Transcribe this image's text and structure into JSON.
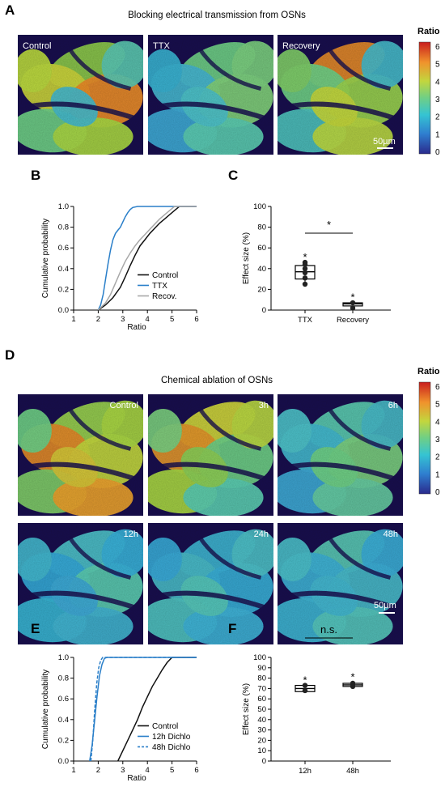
{
  "colors": {
    "control": "#111111",
    "ttx": "#2a7fc9",
    "recovery": "#a8a8a8",
    "dichlo": "#2a7fc9",
    "micrograph_bg": "#1c1450"
  },
  "panel_A": {
    "letter": "A",
    "title": "Blocking electrical transmission from OSNs",
    "image_labels": [
      "Control",
      "TTX",
      "Recovery"
    ],
    "scale_bar": "50µm",
    "colorbar": {
      "title": "Ratio",
      "ticks": [
        "6",
        "5",
        "4",
        "3",
        "2",
        "1",
        "0"
      ]
    }
  },
  "panel_D": {
    "letter": "D",
    "title": "Chemical ablation of OSNs",
    "image_labels": [
      "Control",
      "3h",
      "6h",
      "12h",
      "24h",
      "48h"
    ],
    "scale_bar": "50µm",
    "colorbar": {
      "title": "Ratio",
      "ticks": [
        "6",
        "5",
        "4",
        "3",
        "2",
        "1",
        "0"
      ]
    }
  },
  "chart_data": [
    {
      "panel": "B",
      "type": "line",
      "xlabel": "Ratio",
      "ylabel": "Cumulative probability",
      "xlim": [
        1,
        6
      ],
      "ylim": [
        0,
        1
      ],
      "xticks": [
        "1",
        "2",
        "3",
        "4",
        "5",
        "6"
      ],
      "yticks": [
        "0.0",
        "0.2",
        "0.4",
        "0.6",
        "0.8",
        "1.0"
      ],
      "legend_position": "bottom-right",
      "series": [
        {
          "name": "Control",
          "color": "#111111",
          "dash": false,
          "x": [
            2.0,
            2.3,
            2.6,
            2.9,
            3.1,
            3.3,
            3.5,
            3.7,
            3.9,
            4.1,
            4.3,
            4.5,
            4.7,
            4.9,
            5.1,
            5.3,
            6.0
          ],
          "y": [
            0.0,
            0.05,
            0.12,
            0.22,
            0.32,
            0.43,
            0.53,
            0.62,
            0.68,
            0.74,
            0.79,
            0.84,
            0.88,
            0.92,
            0.96,
            1.0,
            1.0
          ]
        },
        {
          "name": "TTX",
          "color": "#2a7fc9",
          "dash": false,
          "x": [
            2.0,
            2.1,
            2.2,
            2.3,
            2.4,
            2.5,
            2.6,
            2.7,
            2.8,
            2.9,
            3.0,
            3.1,
            3.2,
            3.3,
            3.4,
            3.6,
            6.0
          ],
          "y": [
            0.0,
            0.05,
            0.15,
            0.3,
            0.45,
            0.58,
            0.68,
            0.74,
            0.77,
            0.8,
            0.85,
            0.9,
            0.94,
            0.97,
            0.99,
            1.0,
            1.0
          ]
        },
        {
          "name": "Recov.",
          "color": "#a8a8a8",
          "dash": false,
          "x": [
            2.0,
            2.3,
            2.5,
            2.7,
            2.9,
            3.1,
            3.3,
            3.5,
            3.7,
            3.9,
            4.1,
            4.3,
            4.5,
            4.7,
            4.9,
            5.1,
            6.0
          ],
          "y": [
            0.0,
            0.07,
            0.15,
            0.26,
            0.37,
            0.47,
            0.55,
            0.62,
            0.68,
            0.73,
            0.78,
            0.83,
            0.88,
            0.92,
            0.96,
            1.0,
            1.0
          ]
        }
      ]
    },
    {
      "panel": "C",
      "type": "box",
      "ylabel": "Effect size (%)",
      "categories": [
        "TTX",
        "Recovery"
      ],
      "ylim": [
        0,
        100
      ],
      "yticks": [
        "0",
        "20",
        "40",
        "60",
        "80",
        "100"
      ],
      "boxes": [
        {
          "min": 24,
          "q1": 30,
          "median": 37,
          "q3": 43,
          "max": 46,
          "points": [
            25,
            31,
            36,
            40,
            44,
            46
          ]
        },
        {
          "min": 2,
          "q1": 4,
          "median": 6,
          "q3": 7,
          "max": 7.5,
          "points": [
            2,
            7
          ]
        }
      ],
      "stars": [
        "*",
        "*"
      ],
      "comparison": "*"
    },
    {
      "panel": "E",
      "type": "line",
      "xlabel": "Ratio",
      "ylabel": "Cumulative probability",
      "xlim": [
        1,
        6
      ],
      "ylim": [
        0,
        1
      ],
      "xticks": [
        "1",
        "2",
        "3",
        "4",
        "5",
        "6"
      ],
      "yticks": [
        "0.0",
        "0.2",
        "0.4",
        "0.6",
        "0.8",
        "1.0"
      ],
      "legend_position": "bottom-right",
      "series": [
        {
          "name": "Control",
          "color": "#111111",
          "dash": false,
          "x": [
            2.8,
            3.0,
            3.2,
            3.4,
            3.6,
            3.8,
            4.0,
            4.2,
            4.4,
            4.6,
            4.8,
            5.0,
            6.0
          ],
          "y": [
            0.0,
            0.1,
            0.2,
            0.3,
            0.4,
            0.52,
            0.62,
            0.72,
            0.8,
            0.88,
            0.95,
            1.0,
            1.0
          ]
        },
        {
          "name": "12h Dichlo",
          "color": "#2a7fc9",
          "dash": false,
          "x": [
            1.65,
            1.75,
            1.85,
            1.95,
            2.05,
            2.15,
            2.25,
            2.35,
            6.0
          ],
          "y": [
            0.0,
            0.15,
            0.38,
            0.62,
            0.82,
            0.93,
            0.99,
            1.0,
            1.0
          ]
        },
        {
          "name": "48h Dichlo",
          "color": "#2a7fc9",
          "dash": true,
          "x": [
            1.7,
            1.78,
            1.86,
            1.94,
            2.02,
            2.1,
            2.18,
            2.26,
            6.0
          ],
          "y": [
            0.0,
            0.2,
            0.5,
            0.75,
            0.9,
            0.97,
            1.0,
            1.0,
            1.0
          ]
        }
      ]
    },
    {
      "panel": "F",
      "type": "box",
      "ylabel": "Effect size (%)",
      "categories": [
        "12h",
        "48h"
      ],
      "ylim": [
        0,
        100
      ],
      "yticks": [
        "0",
        "10",
        "20",
        "30",
        "40",
        "50",
        "60",
        "70",
        "80",
        "90",
        "100"
      ],
      "boxes": [
        {
          "min": 67,
          "q1": 67,
          "median": 70,
          "q3": 73,
          "max": 73,
          "points": [
            68,
            73
          ]
        },
        {
          "min": 71,
          "q1": 72,
          "median": 73.5,
          "q3": 75,
          "max": 76,
          "points": [
            72,
            75
          ]
        }
      ],
      "stars": [
        "*",
        "*"
      ],
      "comparison": "n.s."
    }
  ]
}
